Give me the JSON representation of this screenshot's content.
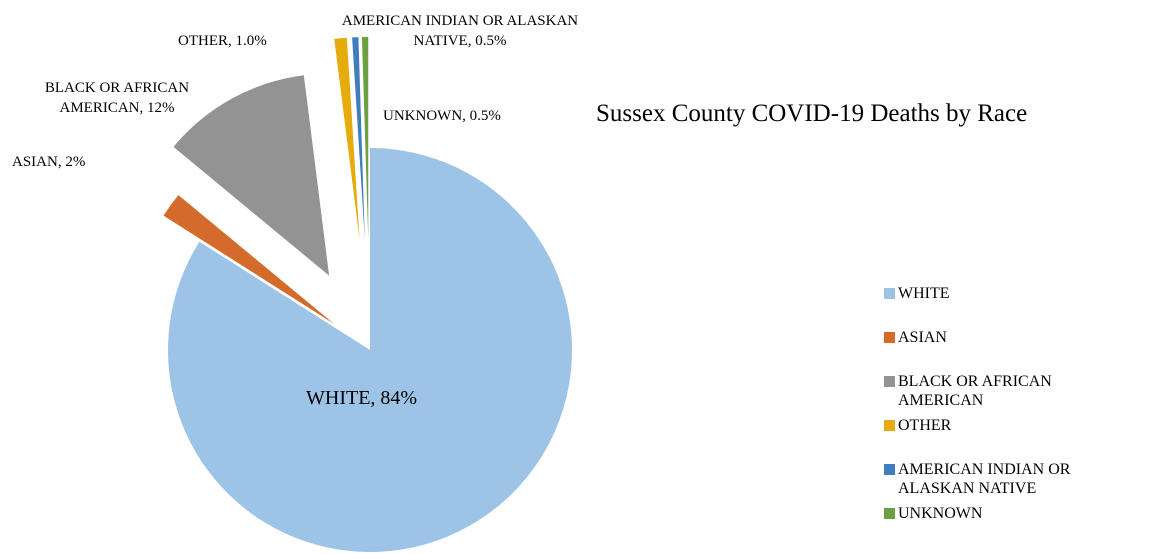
{
  "chart_data": {
    "type": "pie",
    "title": "Sussex County COVID-19 Deaths by Race",
    "slices": [
      {
        "name": "WHITE",
        "value": 84,
        "data_label": "WHITE, 84%",
        "color": "#9DC3E6"
      },
      {
        "name": "ASIAN",
        "value": 2,
        "data_label": "ASIAN, 2%",
        "color": "#D46B2A"
      },
      {
        "name": "BLACK OR AFRICAN AMERICAN",
        "value": 12,
        "data_label": "BLACK OR AFRICAN AMERICAN, 12%",
        "color": "#939393"
      },
      {
        "name": "OTHER",
        "value": 1.0,
        "data_label": "OTHER, 1.0%",
        "color": "#E6AC0E"
      },
      {
        "name": "AMERICAN INDIAN OR ALASKAN NATIVE",
        "value": 0.5,
        "data_label": "AMERICAN INDIAN OR ALASKAN NATIVE, 0.5%",
        "color": "#3E7EBF"
      },
      {
        "name": "UNKNOWN",
        "value": 0.5,
        "data_label": "UNKNOWN, 0.5%",
        "color": "#6BA043"
      }
    ],
    "exploded": true,
    "legend_position": "right"
  }
}
